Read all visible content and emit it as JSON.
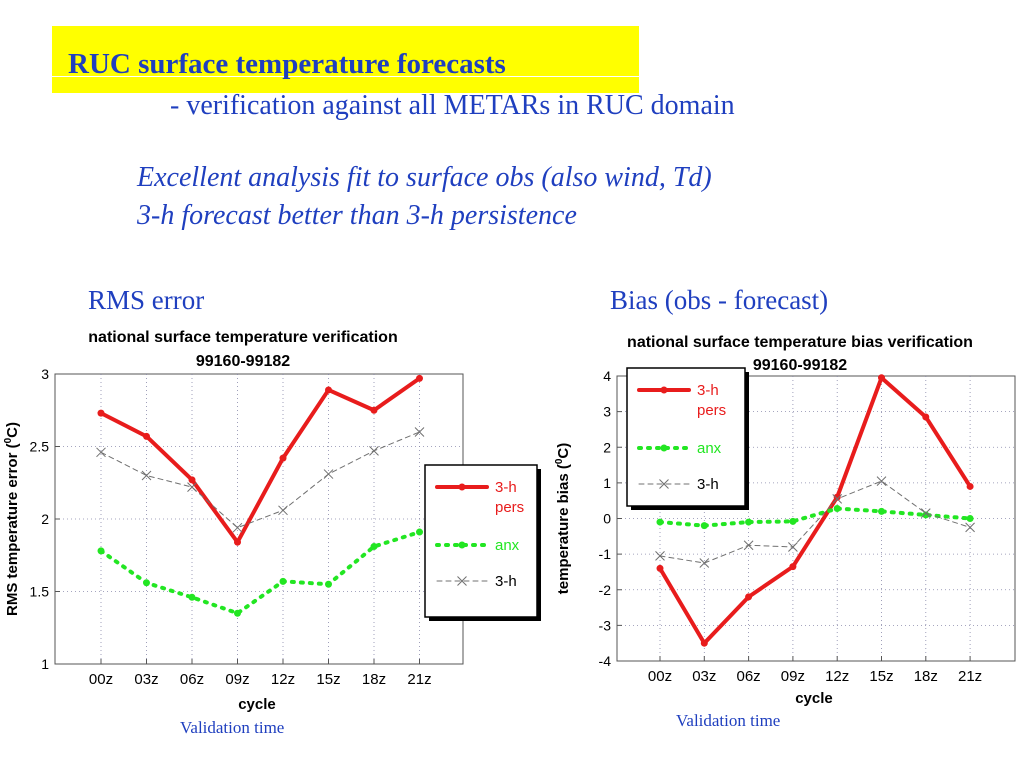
{
  "slide": {
    "title": "RUC surface temperature forecasts",
    "subtitle": "- verification against all METARs in RUC domain",
    "notes": [
      "Excellent analysis fit to surface obs (also wind, Td)",
      "3-h forecast better than 3-h persistence"
    ],
    "left_label": "RMS error",
    "right_label": "Bias (obs - forecast)",
    "left_caption": "Validation time",
    "right_caption": "Validation time"
  },
  "colors": {
    "slide_text": "#1f3fbf",
    "title_box": "#ffff00",
    "pers": "#e81c1c",
    "anx": "#22e622",
    "fcst": "#707070",
    "grid": "#8888aa"
  },
  "chart_data": [
    {
      "type": "line",
      "title": "national surface temperature verification",
      "subtitle": "99160-99182",
      "xlabel": "cycle",
      "ylabel": "RMS temperature error (°C)",
      "ylabel_pre": "RMS temperature error (",
      "ylabel_sup": "0",
      "ylabel_post": "C)",
      "categories": [
        "00z",
        "03z",
        "06z",
        "09z",
        "12z",
        "15z",
        "18z",
        "21z"
      ],
      "ylim": [
        1,
        3
      ],
      "yticks": [
        1,
        1.5,
        2,
        2.5,
        3
      ],
      "yticklabels": [
        "1",
        "1.5",
        "2",
        "2.5",
        "3"
      ],
      "grid": true,
      "legend_position": "right",
      "series": [
        {
          "name": "3-h pers",
          "name_lines": [
            "3-h",
            "pers"
          ],
          "style": "pers",
          "values": [
            2.73,
            2.57,
            2.27,
            1.84,
            2.42,
            2.89,
            2.75,
            2.97
          ]
        },
        {
          "name": "anx",
          "name_lines": [
            "anx"
          ],
          "style": "anx",
          "values": [
            1.78,
            1.56,
            1.46,
            1.35,
            1.57,
            1.55,
            1.81,
            1.91
          ]
        },
        {
          "name": "3-h",
          "name_lines": [
            "3-h"
          ],
          "style": "fcst",
          "values": [
            2.46,
            2.3,
            2.22,
            1.94,
            2.06,
            2.31,
            2.47,
            2.6
          ]
        }
      ]
    },
    {
      "type": "line",
      "title": "national surface temperature bias verification",
      "subtitle": "99160-99182",
      "xlabel": "cycle",
      "ylabel": "temperature bias (°C)",
      "ylabel_pre": "temperature bias (",
      "ylabel_sup": "0",
      "ylabel_post": "C)",
      "categories": [
        "00z",
        "03z",
        "06z",
        "09z",
        "12z",
        "15z",
        "18z",
        "21z"
      ],
      "ylim": [
        -4,
        4
      ],
      "yticks": [
        -4,
        -3,
        -2,
        -1,
        0,
        1,
        2,
        3,
        4
      ],
      "yticklabels": [
        "-4",
        "-3",
        "-2",
        "-1",
        "0",
        "1",
        "2",
        "3",
        "4"
      ],
      "grid": true,
      "legend_position": "top-left",
      "series": [
        {
          "name": "3-h pers",
          "name_lines": [
            "3-h",
            "pers"
          ],
          "style": "pers",
          "values": [
            -1.4,
            -3.5,
            -2.2,
            -1.35,
            0.6,
            3.95,
            2.85,
            0.9
          ]
        },
        {
          "name": "anx",
          "name_lines": [
            "anx"
          ],
          "style": "anx",
          "values": [
            -0.1,
            -0.2,
            -0.1,
            -0.08,
            0.28,
            0.2,
            0.1,
            0.0
          ]
        },
        {
          "name": "3-h",
          "name_lines": [
            "3-h"
          ],
          "style": "fcst",
          "values": [
            -1.05,
            -1.25,
            -0.75,
            -0.8,
            0.55,
            1.05,
            0.15,
            -0.25
          ]
        }
      ]
    }
  ]
}
